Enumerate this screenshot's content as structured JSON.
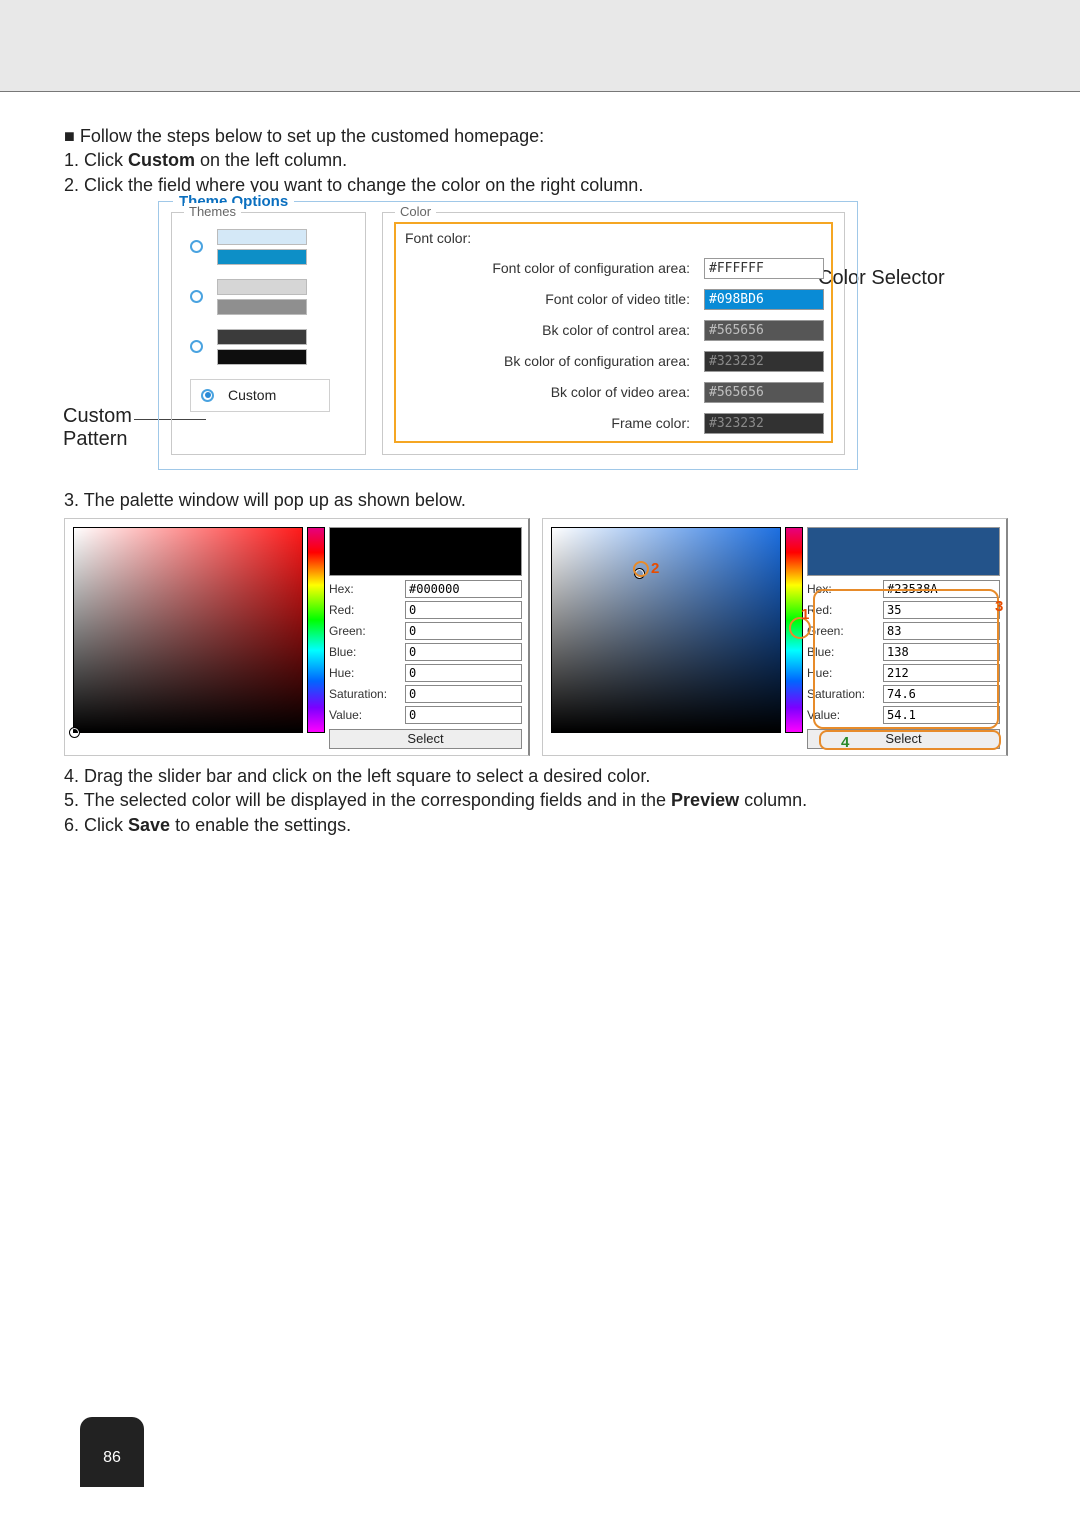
{
  "lead": {
    "bullet": "■ Follow the steps below to set up the customed homepage:",
    "s1a": "1. Click ",
    "s1b": "Custom",
    "s1c": " on the left column.",
    "s2": "2. Click the field where you want to change the color on the right column."
  },
  "themeOptions": {
    "legend": "Theme Options",
    "themesLabel": "Themes",
    "colorLabel": "Color",
    "customLabel": "Custom",
    "swatches": [
      [
        "#d4e8f7",
        "#0d8fc7"
      ],
      [
        "#d6d6d6",
        "#8f8f8f"
      ],
      [
        "#3b3b3b",
        "#0e0e0e"
      ]
    ],
    "colorRows": [
      {
        "label": "Font color:",
        "value": "",
        "bg": "#ffffff",
        "fg": "#333333"
      },
      {
        "label": "Font color of configuration area:",
        "value": "#FFFFFF",
        "bg": "#ffffff",
        "fg": "#333333"
      },
      {
        "label": "Font color of video title:",
        "value": "#098BD6",
        "bg": "#098BD6",
        "fg": "#ffffff"
      },
      {
        "label": "Bk color of control area:",
        "value": "#565656",
        "bg": "#565656",
        "fg": "#bfbfbf"
      },
      {
        "label": "Bk color of configuration area:",
        "value": "#323232",
        "bg": "#323232",
        "fg": "#8a8a8a"
      },
      {
        "label": "Bk color of video area:",
        "value": "#565656",
        "bg": "#565656",
        "fg": "#bfbfbf"
      },
      {
        "label": "Frame color:",
        "value": "#323232",
        "bg": "#323232",
        "fg": "#8a8a8a"
      }
    ]
  },
  "callouts": {
    "customPatternL1": "Custom",
    "customPatternL2": "Pattern",
    "colorSelector": "Color Selector"
  },
  "step3": "3. The palette window will pop up as shown below.",
  "paletteA": {
    "preview": "#000000",
    "fields": {
      "Hex:": "#000000",
      "Red:": "0",
      "Green:": "0",
      "Blue:": "0",
      "Hue:": "0",
      "Saturation:": "0",
      "Value:": "0"
    },
    "select": "Select",
    "pickerDot": {
      "leftPct": 0,
      "topPct": 100
    },
    "gradientBase": "#ff1a1a",
    "hueGradient": "linear-gradient(to bottom,#e5007e 0%,#ff0000 12%,#ffff00 28%,#00ff00 45%,#00ffff 60%,#0066ff 75%,#7a00ff 88%,#ff00ff 100%)"
  },
  "paletteB": {
    "preview": "#23538A",
    "fields": {
      "Hex:": "#23538A",
      "Red:": "35",
      "Green:": "83",
      "Blue:": "138",
      "Hue:": "212",
      "Saturation:": "74.6",
      "Value:": "54.1"
    },
    "select": "Select",
    "pickerDot": {
      "leftPct": 38,
      "topPct": 22
    },
    "gradientBase": "#1d6fe0",
    "hueGradient": "linear-gradient(to bottom,#e5007e 0%,#ff0000 12%,#ffff00 28%,#00ff00 45%,#00ffff 60%,#0066ff 75%,#7a00ff 88%,#ff00ff 100%)",
    "annotations": {
      "num1": "1",
      "num2": "2",
      "num3": "3",
      "num4": "4",
      "colorNum": "#e74c00",
      "colorCircle": "#e78b2a"
    }
  },
  "steps456": {
    "s4": "4. Drag the slider bar and click on the left square to select a desired color.",
    "s5a": "5. The selected color will be displayed in the corresponding fields and in the ",
    "s5b": "Preview",
    "s5c": " column.",
    "s6a": "6. Click ",
    "s6b": "Save",
    "s6c": " to enable the settings."
  },
  "pageNumber": "86"
}
